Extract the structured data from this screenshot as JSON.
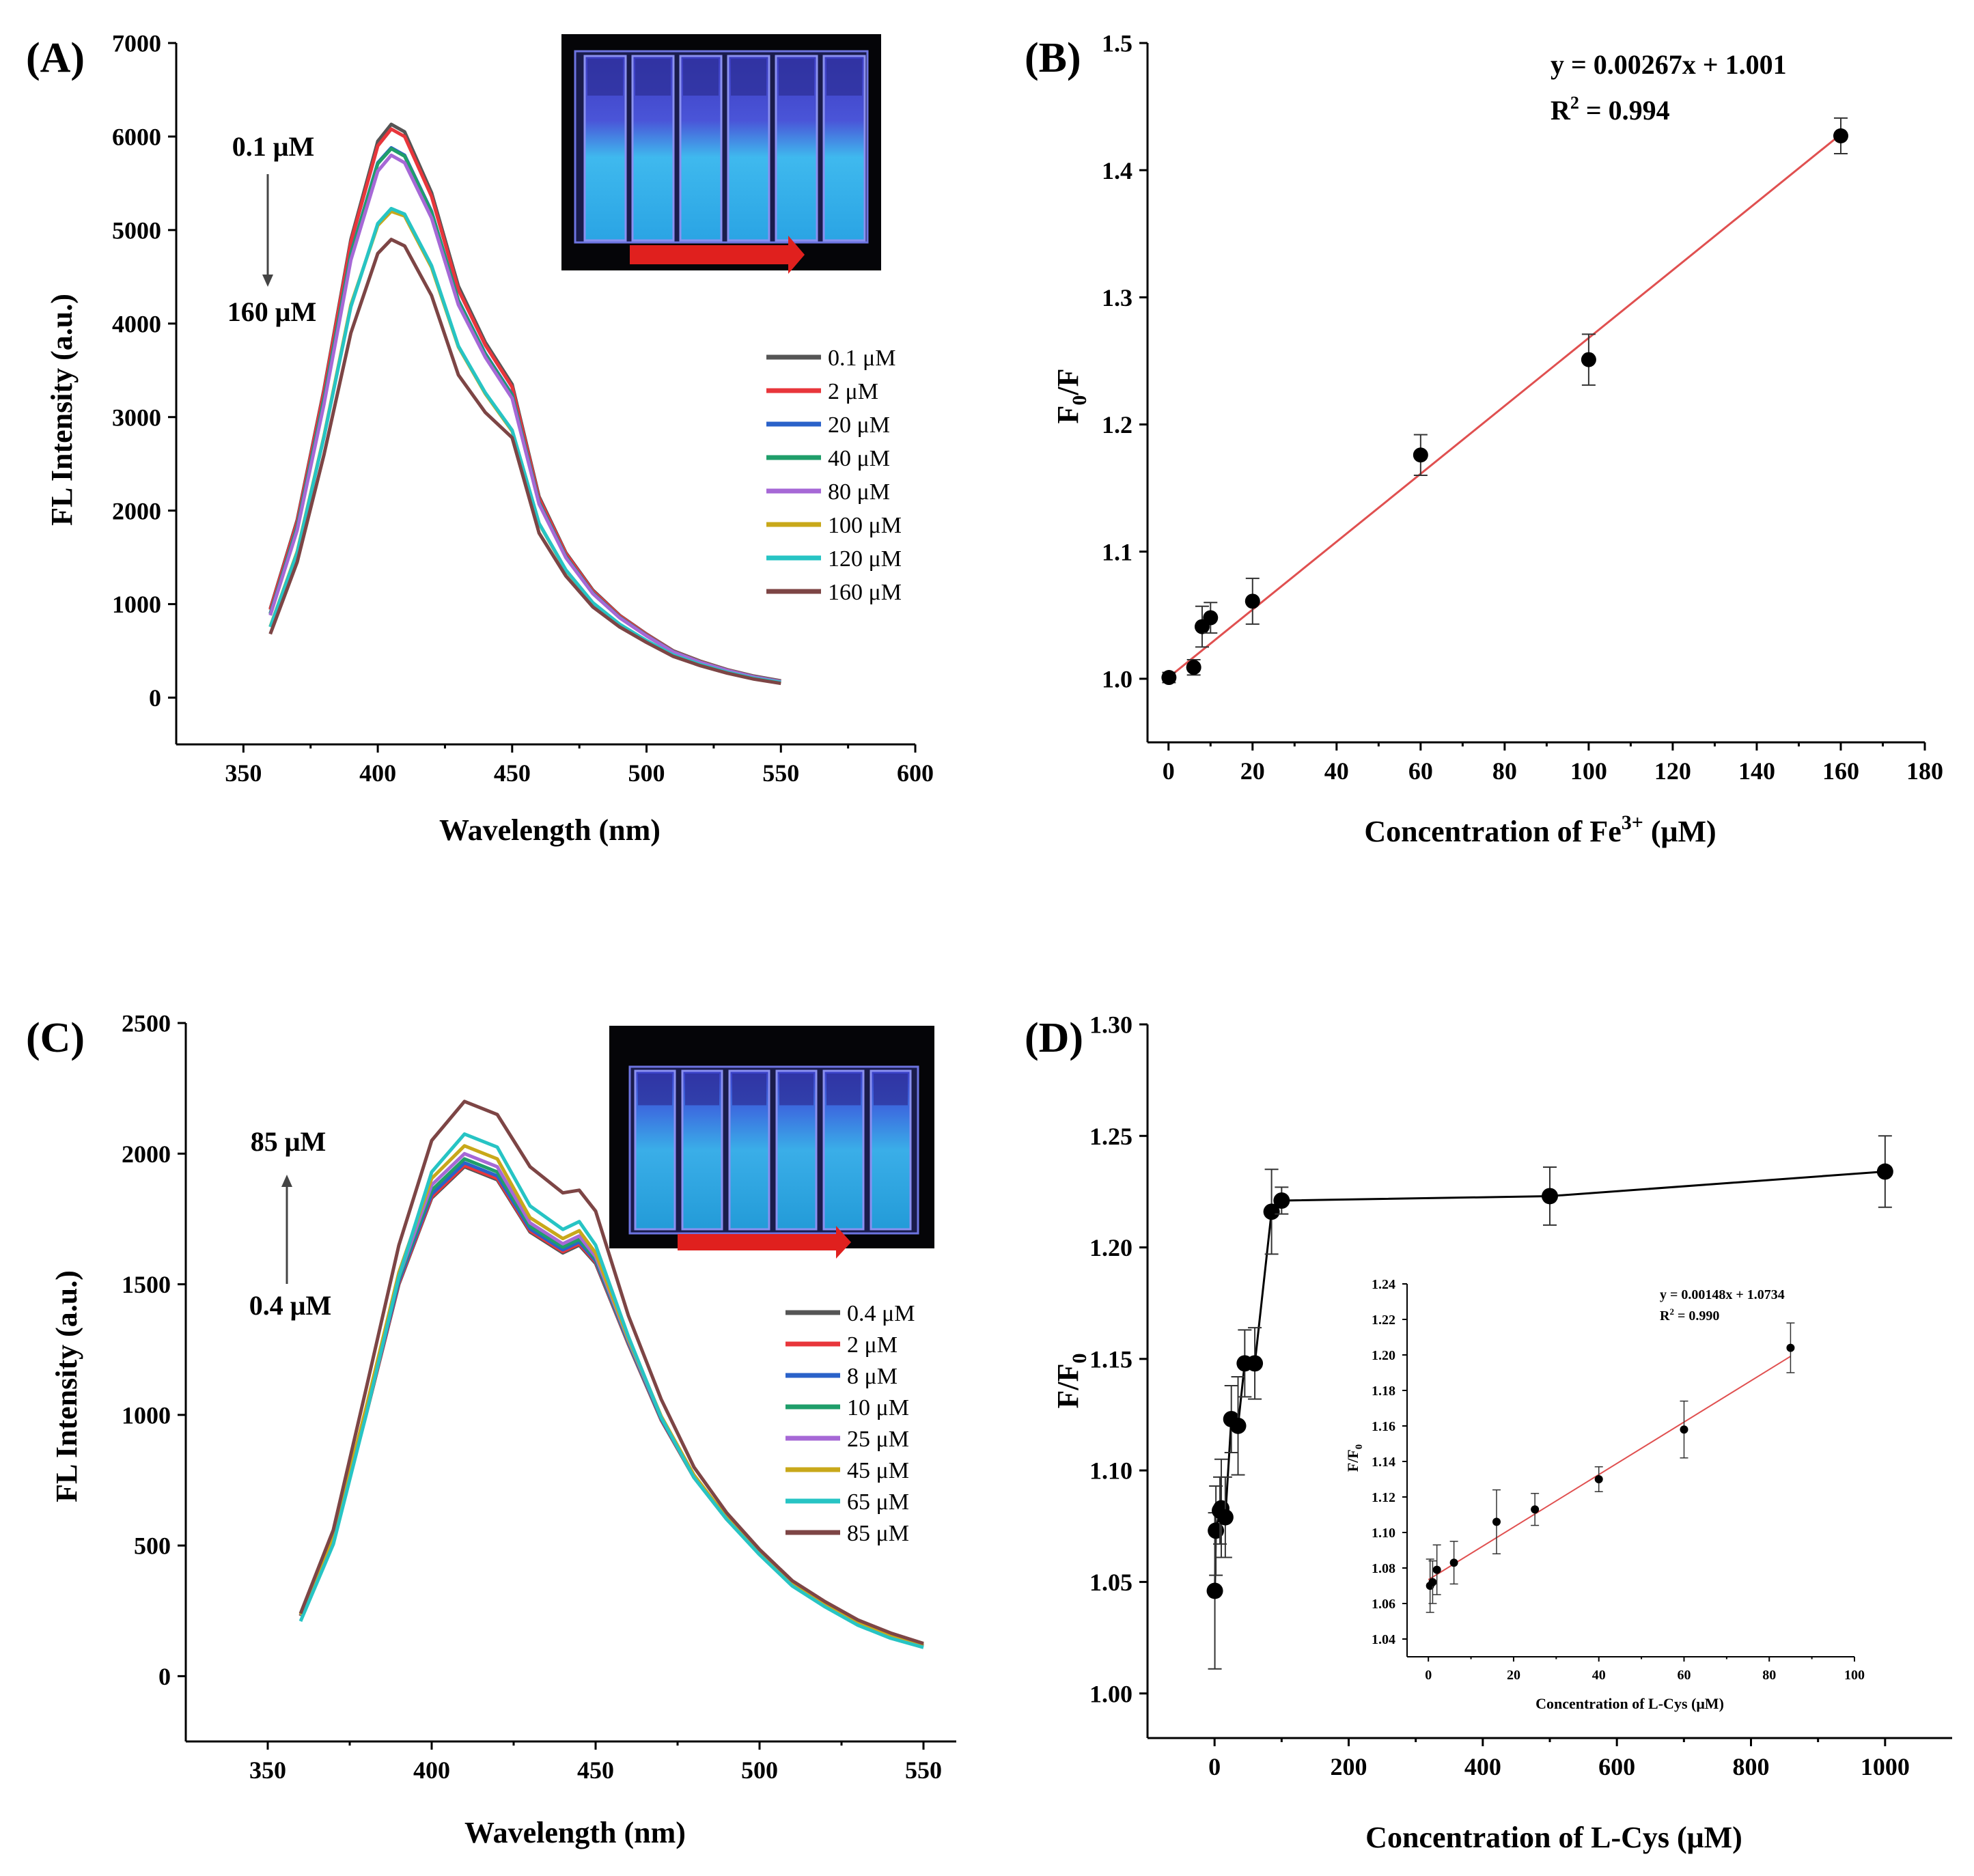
{
  "chart_data": [
    {
      "panel": "(A)",
      "type": "line",
      "xlabel": "Wavelength (nm)",
      "ylabel": "FL Intensity (a.u.)",
      "xlim": [
        325,
        600
      ],
      "ylim": [
        -500,
        7000
      ],
      "xticks": [
        350,
        400,
        450,
        500,
        550,
        600
      ],
      "yticks": [
        0,
        1000,
        2000,
        3000,
        4000,
        5000,
        6000,
        7000
      ],
      "x": [
        360,
        370,
        380,
        390,
        400,
        405,
        410,
        420,
        430,
        440,
        450,
        460,
        470,
        480,
        490,
        500,
        510,
        520,
        530,
        540,
        550
      ],
      "series": [
        {
          "name": "0.1 μM",
          "color": "#555555",
          "values": [
            950,
            1900,
            3300,
            4900,
            5950,
            6130,
            6050,
            5400,
            4400,
            3800,
            3350,
            2150,
            1550,
            1150,
            880,
            680,
            500,
            390,
            300,
            230,
            180
          ]
        },
        {
          "name": "2 μM",
          "color": "#e8363b",
          "values": [
            940,
            1880,
            3280,
            4870,
            5900,
            6080,
            6000,
            5360,
            4360,
            3770,
            3320,
            2130,
            1540,
            1140,
            875,
            675,
            495,
            385,
            295,
            225,
            175
          ]
        },
        {
          "name": "20 μM",
          "color": "#2a62c9",
          "values": [
            900,
            1830,
            3200,
            4750,
            5720,
            5880,
            5800,
            5200,
            4250,
            3680,
            3240,
            2090,
            1510,
            1120,
            860,
            665,
            490,
            380,
            292,
            222,
            172
          ]
        },
        {
          "name": "40 μM",
          "color": "#1f9e6a",
          "values": [
            895,
            1820,
            3190,
            4740,
            5710,
            5870,
            5790,
            5190,
            4240,
            3670,
            3230,
            2085,
            1505,
            1118,
            858,
            663,
            488,
            379,
            291,
            221,
            171
          ]
        },
        {
          "name": "80 μM",
          "color": "#a668d6",
          "values": [
            880,
            1790,
            3140,
            4680,
            5630,
            5800,
            5720,
            5130,
            4200,
            3640,
            3200,
            2070,
            1495,
            1112,
            853,
            660,
            486,
            377,
            290,
            220,
            170
          ]
        },
        {
          "name": "100 μM",
          "color": "#c8a81a",
          "values": [
            760,
            1560,
            2800,
            4200,
            5050,
            5200,
            5150,
            4600,
            3750,
            3250,
            2850,
            1860,
            1360,
            1010,
            780,
            605,
            450,
            350,
            270,
            205,
            160
          ]
        },
        {
          "name": "120 μM",
          "color": "#27c4c4",
          "values": [
            755,
            1550,
            2790,
            4180,
            5070,
            5230,
            5170,
            4620,
            3760,
            3260,
            2860,
            1865,
            1365,
            1015,
            785,
            610,
            455,
            355,
            272,
            207,
            162
          ]
        },
        {
          "name": "160 μM",
          "color": "#7d4545",
          "values": [
            680,
            1450,
            2600,
            3900,
            4750,
            4900,
            4830,
            4300,
            3450,
            3050,
            2780,
            1760,
            1300,
            970,
            755,
            590,
            440,
            342,
            262,
            198,
            152
          ]
        }
      ],
      "annotations": {
        "top": "0.1 μM",
        "bottom": "160 μM"
      },
      "inset": "cuvette photo"
    },
    {
      "panel": "(B)",
      "type": "scatter",
      "xlabel_main": "Concentration of Fe",
      "xlabel_sup": "3+",
      "xlabel_end": " (μM)",
      "ylabel_main": "F",
      "ylabel_sub": "0",
      "ylabel_end": "/F",
      "xlim": [
        -5,
        180
      ],
      "ylim": [
        0.95,
        1.5
      ],
      "xticks": [
        0,
        20,
        40,
        60,
        80,
        100,
        120,
        140,
        160,
        180
      ],
      "yticks": [
        1.0,
        1.1,
        1.2,
        1.3,
        1.4,
        1.5
      ],
      "x": [
        0.1,
        6,
        8,
        10,
        20,
        60,
        100,
        160
      ],
      "y": [
        1.001,
        1.009,
        1.041,
        1.048,
        1.061,
        1.176,
        1.251,
        1.427
      ],
      "error": [
        0.004,
        0.006,
        0.016,
        0.012,
        0.018,
        0.016,
        0.02,
        0.014
      ],
      "fit": {
        "slope": 0.00267,
        "intercept": 1.001,
        "color": "#e05050"
      },
      "equation": "y = 0.00267x + 1.001",
      "r2_main": "R",
      "r2_sup": "2",
      "r2_end": " = 0.994"
    },
    {
      "panel": "(C)",
      "type": "line",
      "xlabel": "Wavelength (nm)",
      "ylabel": "FL Intensity (a.u.)",
      "xlim": [
        325,
        560
      ],
      "ylim": [
        -250,
        2500
      ],
      "xticks": [
        350,
        400,
        450,
        500,
        550
      ],
      "yticks": [
        0,
        500,
        1000,
        1500,
        2000,
        2500
      ],
      "x": [
        360,
        370,
        380,
        390,
        400,
        410,
        420,
        430,
        440,
        445,
        450,
        460,
        470,
        480,
        490,
        500,
        510,
        520,
        530,
        540,
        550
      ],
      "series": [
        {
          "name": "0.4 μM",
          "color": "#555555",
          "values": [
            230,
            520,
            1000,
            1500,
            1830,
            1950,
            1900,
            1700,
            1620,
            1650,
            1580,
            1270,
            980,
            760,
            600,
            470,
            350,
            270,
            200,
            150,
            115
          ]
        },
        {
          "name": "2 μM",
          "color": "#e8363b",
          "values": [
            230,
            522,
            1003,
            1505,
            1835,
            1955,
            1905,
            1705,
            1625,
            1655,
            1585,
            1272,
            982,
            762,
            602,
            471,
            351,
            271,
            201,
            151,
            116
          ]
        },
        {
          "name": "8 μM",
          "color": "#2a62c9",
          "values": [
            232,
            525,
            1008,
            1512,
            1845,
            1965,
            1915,
            1712,
            1632,
            1662,
            1590,
            1276,
            985,
            764,
            603,
            472,
            352,
            272,
            202,
            152,
            117
          ]
        },
        {
          "name": "10 μM",
          "color": "#1f9e6a",
          "values": [
            233,
            528,
            1015,
            1522,
            1860,
            1980,
            1930,
            1722,
            1642,
            1672,
            1598,
            1280,
            988,
            766,
            604,
            473,
            353,
            273,
            203,
            153,
            118
          ]
        },
        {
          "name": "25 μM",
          "color": "#a668d6",
          "values": [
            234,
            530,
            1020,
            1530,
            1880,
            2000,
            1950,
            1735,
            1655,
            1685,
            1606,
            1285,
            991,
            768,
            605,
            474,
            354,
            274,
            204,
            154,
            119
          ]
        },
        {
          "name": "45 μM",
          "color": "#c8a81a",
          "values": [
            235,
            533,
            1028,
            1545,
            1905,
            2030,
            1980,
            1755,
            1675,
            1705,
            1620,
            1292,
            995,
            770,
            606,
            475,
            355,
            275,
            205,
            155,
            120
          ]
        },
        {
          "name": "65 μM",
          "color": "#27c4c4",
          "values": [
            210,
            505,
            1000,
            1530,
            1930,
            2075,
            2025,
            1800,
            1710,
            1740,
            1650,
            1300,
            990,
            760,
            600,
            465,
            345,
            265,
            195,
            145,
            110
          ]
        },
        {
          "name": "85 μM",
          "color": "#7d4545",
          "values": [
            240,
            560,
            1100,
            1650,
            2050,
            2200,
            2150,
            1950,
            1850,
            1860,
            1780,
            1380,
            1060,
            800,
            625,
            485,
            365,
            285,
            215,
            165,
            125
          ]
        }
      ],
      "annotations": {
        "top": "85 μM",
        "bottom": "0.4 μM"
      },
      "inset": "cuvette photo"
    },
    {
      "panel": "(D)",
      "type": "line",
      "xlabel": "Concentration of L-Cys (μM)",
      "ylabel_main": "F/F",
      "ylabel_sub": "0",
      "xlim": [
        -100,
        1100
      ],
      "ylim": [
        0.98,
        1.3
      ],
      "xticks": [
        0,
        200,
        400,
        600,
        800,
        1000
      ],
      "yticks": [
        1.0,
        1.05,
        1.1,
        1.15,
        1.2,
        1.25,
        1.3
      ],
      "x": [
        0.4,
        2,
        8,
        10,
        16,
        25,
        35,
        45,
        60,
        85,
        100,
        500,
        1000
      ],
      "y": [
        1.046,
        1.073,
        1.082,
        1.083,
        1.079,
        1.123,
        1.12,
        1.148,
        1.148,
        1.216,
        1.221,
        1.223,
        1.234
      ],
      "error": [
        0.035,
        0.02,
        0.015,
        0.022,
        0.018,
        0.015,
        0.022,
        0.015,
        0.016,
        0.019,
        0.006,
        0.013,
        0.016
      ],
      "inset": {
        "type": "scatter",
        "xlabel": "Concentration of L-Cys (μM)",
        "ylabel_main": "F/F",
        "ylabel_sub": "0",
        "xlim": [
          -5,
          100
        ],
        "ylim": [
          1.03,
          1.24
        ],
        "xticks": [
          0,
          20,
          40,
          60,
          80,
          100
        ],
        "yticks": [
          1.04,
          1.06,
          1.08,
          1.1,
          1.12,
          1.14,
          1.16,
          1.18,
          1.2,
          1.22,
          1.24
        ],
        "x": [
          0.4,
          1,
          2,
          6,
          16,
          25,
          40,
          60,
          85
        ],
        "y": [
          1.07,
          1.072,
          1.079,
          1.083,
          1.106,
          1.113,
          1.13,
          1.158,
          1.204
        ],
        "error": [
          0.015,
          0.012,
          0.014,
          0.012,
          0.018,
          0.009,
          0.007,
          0.016,
          0.014
        ],
        "fit": {
          "slope": 0.00148,
          "intercept": 1.0734,
          "color": "#e05050"
        },
        "equation": "y = 0.00148x + 1.0734",
        "r2_main": "R",
        "r2_sup": "2",
        "r2_end": " = 0.990"
      }
    }
  ]
}
